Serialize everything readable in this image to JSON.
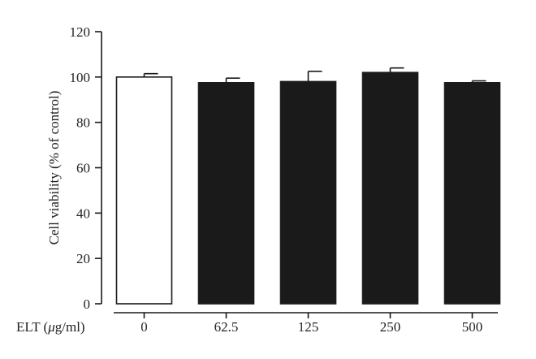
{
  "chart_data": {
    "type": "bar",
    "ylabel": "Cell viability (% of control)",
    "x_axis_prefix": "ELT (",
    "x_axis_unit_mu": "μ",
    "x_axis_unit_rest": "g/ml)",
    "categories": [
      "0",
      "62.5",
      "125",
      "250",
      "500"
    ],
    "values": [
      100,
      97.5,
      98,
      102,
      97.5
    ],
    "errors": [
      1.5,
      2.0,
      4.5,
      2.0,
      0.8
    ],
    "bar_colors": [
      "#ffffff",
      "#1a1a1a",
      "#1a1a1a",
      "#1a1a1a",
      "#1a1a1a"
    ],
    "ylim": [
      0,
      120
    ],
    "yticks": [
      0,
      20,
      40,
      60,
      80,
      100,
      120
    ],
    "grid": false,
    "legend": false
  }
}
